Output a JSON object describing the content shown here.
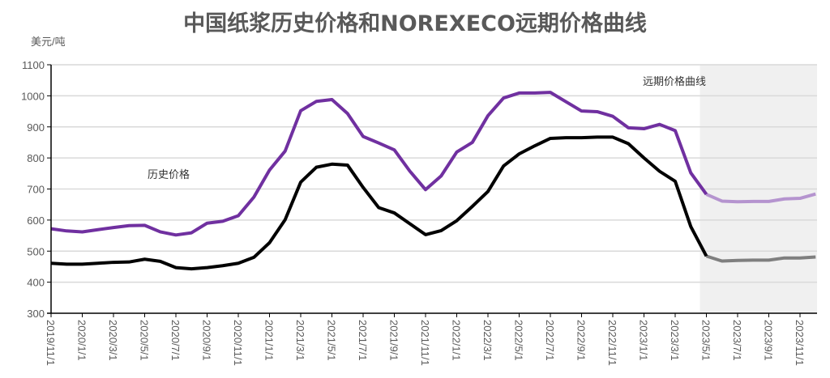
{
  "chart_data": {
    "type": "line",
    "title": "中国纸浆历史价格和NOREXECO远期价格曲线",
    "ylabel": "美元/吨",
    "xlabel": "",
    "ylim": [
      300,
      1100
    ],
    "yticks": [
      300,
      400,
      500,
      600,
      700,
      800,
      900,
      1000,
      1100
    ],
    "grid": true,
    "x_tick_labels": [
      "2019/11/1",
      "2020/1/1",
      "2020/3/1",
      "2020/5/1",
      "2020/7/1",
      "2020/9/1",
      "2020/11/1",
      "2021/1/1",
      "2021/3/1",
      "2021/5/1",
      "2021/7/1",
      "2021/9/1",
      "2021/11/1",
      "2022/1/1",
      "2022/3/1",
      "2022/5/1",
      "2022/7/1",
      "2022/9/1",
      "2022/11/1",
      "2023/1/1",
      "2023/3/1",
      "2023/5/1",
      "2023/7/1",
      "2023/9/1",
      "2023/11/1"
    ],
    "x_start": "2019/11",
    "x_step": "1 month",
    "forecast_start_index": 42,
    "annotations": {
      "history": "历史价格",
      "forecast": "远期价格曲线"
    },
    "series": [
      {
        "name": "purple-series",
        "color": "#7030a0",
        "forecast_color": "#b594cf",
        "values": [
          572,
          565,
          562,
          569,
          576,
          582,
          583,
          562,
          552,
          559,
          590,
          596,
          614,
          674,
          761,
          822,
          952,
          982,
          988,
          943,
          869,
          848,
          826,
          757,
          698,
          742,
          819,
          850,
          936,
          993,
          1009,
          1009,
          1011,
          981,
          951,
          949,
          934,
          897,
          894,
          908,
          888,
          752,
          683,
          661,
          659,
          660,
          660,
          668,
          670,
          684
        ]
      },
      {
        "name": "black-series",
        "color": "#000000",
        "forecast_color": "#7f7f7f",
        "values": [
          461,
          458,
          458,
          461,
          464,
          465,
          474,
          467,
          447,
          443,
          447,
          453,
          461,
          480,
          527,
          601,
          722,
          770,
          780,
          777,
          705,
          640,
          623,
          588,
          553,
          566,
          598,
          644,
          692,
          774,
          813,
          839,
          863,
          865,
          865,
          867,
          867,
          846,
          800,
          757,
          725,
          579,
          484,
          468,
          470,
          471,
          471,
          478,
          478,
          481
        ]
      }
    ]
  }
}
